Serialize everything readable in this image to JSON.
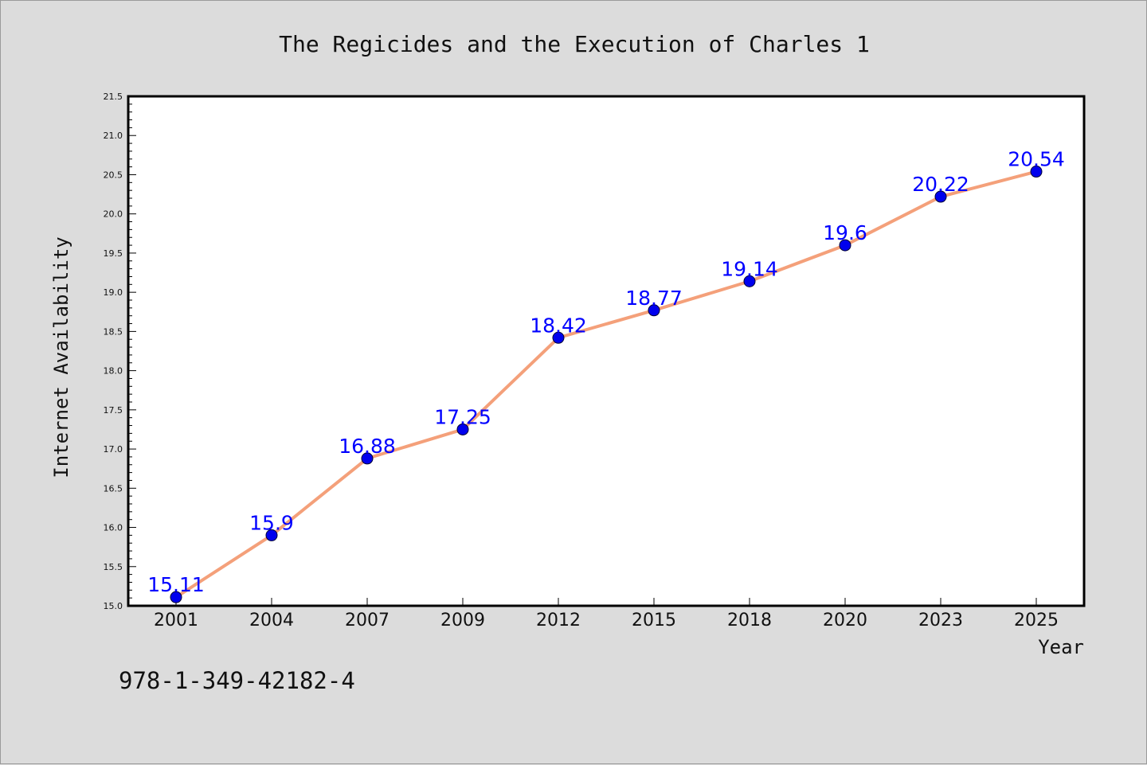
{
  "chart_data": {
    "type": "line",
    "title": "The Regicides and the Execution of Charles 1",
    "xlabel": "Year",
    "ylabel": "Internet Availability",
    "categories": [
      "2001",
      "2004",
      "2007",
      "2009",
      "2012",
      "2015",
      "2018",
      "2020",
      "2023",
      "2025"
    ],
    "series": [
      {
        "values": [
          15.11,
          15.9,
          16.88,
          17.25,
          18.42,
          18.77,
          19.14,
          19.6,
          20.22,
          20.54
        ],
        "labels": [
          "15.11",
          "15.9",
          "16.88",
          "17.25",
          "18.42",
          "18.77",
          "19.14",
          "19.6",
          "20.22",
          "20.54"
        ],
        "line_color": "#f4a07a",
        "marker_color": "#0000ee"
      }
    ],
    "ylim": [
      15.0,
      21.5
    ],
    "yticks": [
      "15.0",
      "15.5",
      "16.0",
      "16.5",
      "17.0",
      "17.5",
      "18.0",
      "18.5",
      "19.0",
      "19.5",
      "20.0",
      "20.5",
      "21.0",
      "21.5"
    ],
    "grid": false,
    "legend": "none"
  },
  "annotation": {
    "isbn": "978-1-349-42182-4"
  },
  "colors": {
    "background": "#dcdcdc",
    "plot_background": "#ffffff",
    "label_color": "#0000ff"
  }
}
